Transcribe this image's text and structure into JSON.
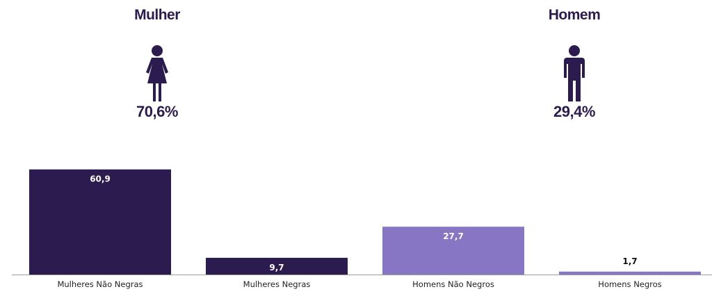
{
  "header": {
    "female": {
      "title": "Mulher",
      "percent": "70,6%"
    },
    "male": {
      "title": "Homem",
      "percent": "29,4%"
    }
  },
  "chart_data": {
    "type": "bar",
    "categories": [
      "Mulheres Não Negras",
      "Mulheres Negras",
      "Homens Não Negros",
      "Homens Negros"
    ],
    "values": [
      60.9,
      9.7,
      27.7,
      1.7
    ],
    "data_labels": [
      "60,9",
      "9,7",
      "27,7",
      "1,7"
    ],
    "colors": [
      "#2b1b4e",
      "#2b1b4e",
      "#8676c4",
      "#8676c4"
    ],
    "title": "",
    "xlabel": "",
    "ylabel": "",
    "ylim": [
      0,
      62
    ],
    "grid": false
  },
  "colors": {
    "dark_purple": "#2b1b4e",
    "light_purple": "#8676c4",
    "axis": "#9a9a9a"
  },
  "icons": [
    "female-figure-icon",
    "male-figure-icon"
  ]
}
